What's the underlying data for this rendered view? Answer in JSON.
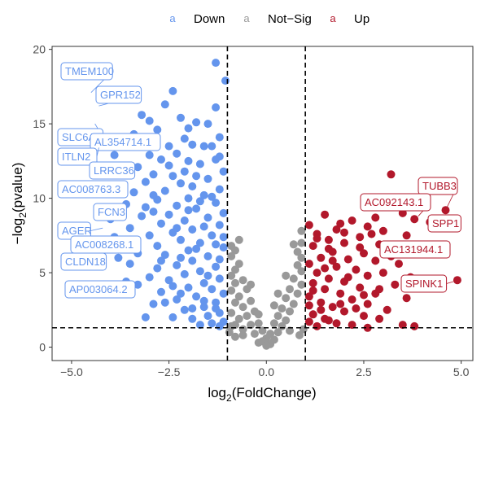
{
  "chart_data": {
    "type": "scatter",
    "title": "",
    "xlabel": "log2(FoldChange)",
    "ylabel": "-log2(pvalue)",
    "xlim": [
      -5.5,
      5.3
    ],
    "ylim": [
      -0.9,
      20.2
    ],
    "x_ticks": [
      -5.0,
      -2.5,
      0.0,
      2.5,
      5.0
    ],
    "x_tick_labels": [
      "−5.0",
      "−2.5",
      "0.0",
      "2.5",
      "5.0"
    ],
    "y_ticks": [
      0,
      5,
      10,
      15,
      20
    ],
    "y_tick_labels": [
      "0",
      "5",
      "10",
      "15",
      "20"
    ],
    "thresholds": {
      "fc": [
        -1,
        1
      ],
      "p": 1.3
    },
    "grid": false,
    "legend": {
      "position": "top",
      "key_glyph": "a",
      "entries": [
        {
          "name": "Down",
          "color": "#6495ED"
        },
        {
          "name": "Not−Sig",
          "color": "#999999"
        },
        {
          "name": "Up",
          "color": "#B2182B"
        }
      ]
    },
    "labels": [
      {
        "gene": "TMEM100",
        "x": -4.5,
        "y": 17.1,
        "group": "Down"
      },
      {
        "gene": "GPR152",
        "x": -4.3,
        "y": 16.2,
        "group": "Down"
      },
      {
        "gene": "SLC6A4",
        "x": -4.4,
        "y": 15.0,
        "group": "Down"
      },
      {
        "gene": "AL354714.1",
        "x": -4.0,
        "y": 14.3,
        "group": "Down"
      },
      {
        "gene": "ITLN2",
        "x": -4.3,
        "y": 13.4,
        "group": "Down"
      },
      {
        "gene": "LRRC36",
        "x": -4.1,
        "y": 12.0,
        "group": "Down"
      },
      {
        "gene": "AC008763.3",
        "x": -4.0,
        "y": 10.8,
        "group": "Down"
      },
      {
        "gene": "FCN3",
        "x": -3.9,
        "y": 9.4,
        "group": "Down"
      },
      {
        "gene": "AGER",
        "x": -4.2,
        "y": 8.0,
        "group": "Down"
      },
      {
        "gene": "AC008268.1",
        "x": -4.0,
        "y": 7.2,
        "group": "Down"
      },
      {
        "gene": "CLDN18",
        "x": -4.3,
        "y": 6.0,
        "group": "Down"
      },
      {
        "gene": "AP003064.2",
        "x": -4.1,
        "y": 4.4,
        "group": "Down"
      },
      {
        "gene": "TUBB3",
        "x": 4.6,
        "y": 9.2,
        "group": "Up"
      },
      {
        "gene": "AC092143.1",
        "x": 3.9,
        "y": 8.8,
        "group": "Up"
      },
      {
        "gene": "SPP1",
        "x": 4.2,
        "y": 8.4,
        "group": "Up"
      },
      {
        "gene": "AC131944.1",
        "x": 3.5,
        "y": 6.3,
        "group": "Up"
      },
      {
        "gene": "SPINK1",
        "x": 4.8,
        "y": 4.4,
        "group": "Up"
      }
    ],
    "points": {
      "Down": [
        [
          -1.3,
          19.1
        ],
        [
          -1.05,
          17.9
        ],
        [
          -2.4,
          17.2
        ],
        [
          -2.6,
          16.3
        ],
        [
          -3.2,
          15.6
        ],
        [
          -3.0,
          15.2
        ],
        [
          -2.2,
          15.4
        ],
        [
          -1.8,
          15.1
        ],
        [
          -1.5,
          15.0
        ],
        [
          -2.0,
          14.7
        ],
        [
          -2.8,
          14.6
        ],
        [
          -3.4,
          14.3
        ],
        [
          -1.2,
          14.1
        ],
        [
          -1.9,
          13.6
        ],
        [
          -2.5,
          13.5
        ],
        [
          -1.6,
          13.5
        ],
        [
          -1.4,
          13.5
        ],
        [
          -2.3,
          13.0
        ],
        [
          -3.0,
          12.9
        ],
        [
          -2.7,
          12.6
        ],
        [
          -1.3,
          12.6
        ],
        [
          -2.0,
          12.5
        ],
        [
          -3.3,
          12.1
        ],
        [
          -1.7,
          12.3
        ],
        [
          -2.1,
          11.8
        ],
        [
          -1.1,
          11.8
        ],
        [
          -2.9,
          11.6
        ],
        [
          -2.4,
          11.5
        ],
        [
          -1.5,
          11.3
        ],
        [
          -3.1,
          11.1
        ],
        [
          -2.2,
          11.0
        ],
        [
          -1.9,
          10.8
        ],
        [
          -1.2,
          10.6
        ],
        [
          -2.6,
          10.5
        ],
        [
          -3.4,
          10.4
        ],
        [
          -1.6,
          10.2
        ],
        [
          -2.0,
          10.0
        ],
        [
          -2.8,
          9.9
        ],
        [
          -1.3,
          9.7
        ],
        [
          -3.6,
          9.6
        ],
        [
          -2.3,
          9.5
        ],
        [
          -1.8,
          9.3
        ],
        [
          -2.9,
          9.1
        ],
        [
          -1.1,
          9.0
        ],
        [
          -2.5,
          8.9
        ],
        [
          -3.2,
          8.8
        ],
        [
          -4.1,
          9.0
        ],
        [
          -1.5,
          8.7
        ],
        [
          -2.1,
          8.5
        ],
        [
          -2.7,
          8.3
        ],
        [
          -1.2,
          8.2
        ],
        [
          -3.5,
          8.0
        ],
        [
          -1.9,
          7.9
        ],
        [
          -2.4,
          7.7
        ],
        [
          -3.0,
          7.5
        ],
        [
          -1.4,
          7.5
        ],
        [
          -2.2,
          7.2
        ],
        [
          -1.7,
          7.0
        ],
        [
          -3.7,
          6.9
        ],
        [
          -2.8,
          6.8
        ],
        [
          -1.1,
          6.7
        ],
        [
          -2.0,
          6.5
        ],
        [
          -3.3,
          6.3
        ],
        [
          -2.6,
          6.2
        ],
        [
          -1.5,
          6.1
        ],
        [
          -1.9,
          5.8
        ],
        [
          -3.5,
          5.6
        ],
        [
          -2.3,
          5.5
        ],
        [
          -1.3,
          5.4
        ],
        [
          -2.8,
          5.3
        ],
        [
          -1.7,
          5.1
        ],
        [
          -2.1,
          4.9
        ],
        [
          -3.0,
          4.7
        ],
        [
          -1.2,
          4.6
        ],
        [
          -2.5,
          4.5
        ],
        [
          -1.6,
          4.3
        ],
        [
          -3.3,
          4.2
        ],
        [
          -2.0,
          4.0
        ],
        [
          -1.4,
          3.9
        ],
        [
          -2.7,
          3.7
        ],
        [
          -1.1,
          3.6
        ],
        [
          -1.8,
          3.4
        ],
        [
          -2.3,
          3.2
        ],
        [
          -1.3,
          3.0
        ],
        [
          -2.9,
          2.9
        ],
        [
          -1.6,
          2.7
        ],
        [
          -2.1,
          2.5
        ],
        [
          -1.2,
          2.3
        ],
        [
          -1.5,
          2.1
        ],
        [
          -1.9,
          1.9
        ],
        [
          -1.1,
          1.7
        ],
        [
          -2.4,
          2.0
        ],
        [
          -1.4,
          1.6
        ],
        [
          -3.1,
          2.0
        ],
        [
          -1.7,
          1.5
        ],
        [
          -1.2,
          1.4
        ],
        [
          -2.6,
          3.0
        ],
        [
          -3.6,
          4.4
        ],
        [
          -3.8,
          6.0
        ],
        [
          -3.9,
          7.4
        ],
        [
          -4.0,
          8.6
        ],
        [
          -3.7,
          11.7
        ],
        [
          -3.9,
          12.9
        ],
        [
          -1.3,
          16.1
        ],
        [
          -2.2,
          6.0
        ],
        [
          -1.8,
          6.6
        ],
        [
          -1.5,
          4.8
        ],
        [
          -2.4,
          4.1
        ],
        [
          -1.2,
          5.9
        ],
        [
          -1.6,
          8.1
        ],
        [
          -2.0,
          9.2
        ],
        [
          -1.4,
          10.1
        ],
        [
          -1.8,
          11.5
        ],
        [
          -2.5,
          12.2
        ],
        [
          -2.9,
          10.2
        ],
        [
          -3.1,
          9.4
        ],
        [
          -1.1,
          7.4
        ],
        [
          -1.3,
          6.9
        ],
        [
          -2.2,
          3.6
        ],
        [
          -1.6,
          3.1
        ],
        [
          -1.9,
          2.6
        ],
        [
          -1.3,
          2.6
        ],
        [
          -2.7,
          5.8
        ],
        [
          -3.4,
          7.0
        ],
        [
          -2.3,
          8.0
        ],
        [
          -1.7,
          9.8
        ],
        [
          -1.2,
          12.8
        ],
        [
          -2.1,
          14.0
        ]
      ],
      "NotSig": [
        [
          -0.9,
          6.8
        ],
        [
          -0.8,
          6.5
        ],
        [
          -0.9,
          6.1
        ],
        [
          -0.7,
          5.6
        ],
        [
          -0.8,
          5.2
        ],
        [
          -0.9,
          4.8
        ],
        [
          -0.6,
          4.5
        ],
        [
          -0.8,
          4.3
        ],
        [
          -0.5,
          3.9
        ],
        [
          -0.9,
          3.8
        ],
        [
          -0.7,
          3.4
        ],
        [
          -0.4,
          3.1
        ],
        [
          -0.8,
          3.0
        ],
        [
          -0.6,
          2.7
        ],
        [
          -0.3,
          2.4
        ],
        [
          -0.9,
          2.3
        ],
        [
          -0.5,
          2.1
        ],
        [
          -0.7,
          1.9
        ],
        [
          -0.2,
          1.6
        ],
        [
          -0.4,
          1.5
        ],
        [
          -0.8,
          1.5
        ],
        [
          -0.1,
          1.1
        ],
        [
          -0.6,
          1.2
        ],
        [
          -0.3,
          0.9
        ],
        [
          0.0,
          0.6
        ],
        [
          0.1,
          0.9
        ],
        [
          0.2,
          0.5
        ],
        [
          -0.2,
          0.3
        ],
        [
          0.3,
          1.0
        ],
        [
          0.4,
          1.4
        ],
        [
          0.2,
          1.6
        ],
        [
          0.5,
          1.8
        ],
        [
          0.3,
          2.1
        ],
        [
          0.6,
          2.4
        ],
        [
          0.4,
          2.6
        ],
        [
          0.7,
          2.9
        ],
        [
          0.5,
          3.3
        ],
        [
          0.8,
          3.6
        ],
        [
          0.6,
          3.9
        ],
        [
          0.9,
          4.2
        ],
        [
          0.7,
          4.6
        ],
        [
          0.9,
          5.1
        ],
        [
          0.8,
          5.5
        ],
        [
          0.9,
          6.0
        ],
        [
          0.8,
          6.4
        ],
        [
          0.9,
          7.0
        ],
        [
          0.9,
          7.8
        ],
        [
          0.7,
          6.9
        ],
        [
          -0.9,
          1.4
        ],
        [
          -0.95,
          1.0
        ],
        [
          0.95,
          1.2
        ],
        [
          0.85,
          0.8
        ],
        [
          -0.6,
          0.8
        ],
        [
          0.6,
          1.1
        ],
        [
          -0.8,
          0.7
        ],
        [
          0.1,
          0.2
        ],
        [
          -0.1,
          0.4
        ],
        [
          0.0,
          0.1
        ],
        [
          0.2,
          2.8
        ],
        [
          -0.4,
          4.2
        ],
        [
          0.3,
          3.6
        ],
        [
          -0.2,
          2.2
        ],
        [
          0.5,
          4.8
        ],
        [
          -0.7,
          7.2
        ]
      ],
      "Up": [
        [
          3.2,
          11.6
        ],
        [
          4.6,
          9.2
        ],
        [
          2.8,
          8.7
        ],
        [
          3.5,
          9.0
        ],
        [
          1.5,
          8.9
        ],
        [
          2.2,
          8.5
        ],
        [
          3.8,
          8.6
        ],
        [
          1.1,
          8.2
        ],
        [
          2.6,
          8.1
        ],
        [
          4.2,
          8.4
        ],
        [
          1.8,
          7.9
        ],
        [
          3.0,
          7.8
        ],
        [
          1.3,
          7.6
        ],
        [
          2.4,
          7.4
        ],
        [
          3.6,
          7.5
        ],
        [
          1.6,
          7.2
        ],
        [
          2.0,
          7.0
        ],
        [
          2.9,
          6.9
        ],
        [
          1.2,
          6.8
        ],
        [
          3.3,
          6.5
        ],
        [
          1.7,
          6.4
        ],
        [
          2.5,
          6.3
        ],
        [
          3.9,
          6.3
        ],
        [
          1.4,
          6.0
        ],
        [
          2.1,
          5.9
        ],
        [
          2.8,
          5.8
        ],
        [
          1.1,
          5.6
        ],
        [
          3.4,
          5.6
        ],
        [
          1.8,
          5.4
        ],
        [
          2.3,
          5.2
        ],
        [
          1.3,
          5.0
        ],
        [
          3.0,
          5.0
        ],
        [
          2.6,
          4.8
        ],
        [
          1.6,
          4.6
        ],
        [
          4.9,
          4.5
        ],
        [
          2.0,
          4.4
        ],
        [
          1.2,
          4.3
        ],
        [
          3.3,
          4.2
        ],
        [
          2.4,
          4.0
        ],
        [
          1.5,
          3.9
        ],
        [
          1.9,
          3.6
        ],
        [
          2.8,
          3.6
        ],
        [
          1.1,
          3.4
        ],
        [
          2.2,
          3.2
        ],
        [
          3.6,
          3.3
        ],
        [
          1.4,
          3.0
        ],
        [
          2.6,
          2.9
        ],
        [
          1.7,
          2.7
        ],
        [
          3.1,
          2.5
        ],
        [
          2.0,
          2.4
        ],
        [
          1.2,
          2.2
        ],
        [
          2.5,
          2.1
        ],
        [
          1.5,
          1.9
        ],
        [
          1.1,
          1.7
        ],
        [
          1.8,
          1.6
        ],
        [
          2.2,
          1.5
        ],
        [
          3.5,
          1.5
        ],
        [
          1.3,
          1.4
        ],
        [
          2.6,
          1.3
        ],
        [
          1.6,
          1.8
        ],
        [
          2.9,
          3.9
        ],
        [
          3.7,
          4.7
        ],
        [
          1.9,
          8.3
        ],
        [
          2.4,
          6.7
        ],
        [
          1.3,
          7.3
        ],
        [
          1.7,
          5.8
        ],
        [
          2.1,
          4.7
        ],
        [
          1.2,
          3.8
        ],
        [
          2.7,
          7.6
        ],
        [
          3.2,
          6.1
        ],
        [
          1.5,
          5.3
        ],
        [
          1.9,
          2.9
        ],
        [
          2.3,
          2.6
        ],
        [
          1.4,
          2.5
        ],
        [
          3.8,
          1.4
        ],
        [
          2.9,
          1.9
        ],
        [
          1.1,
          2.8
        ],
        [
          1.6,
          6.6
        ],
        [
          2.0,
          7.7
        ],
        [
          2.5,
          3.5
        ]
      ]
    }
  }
}
